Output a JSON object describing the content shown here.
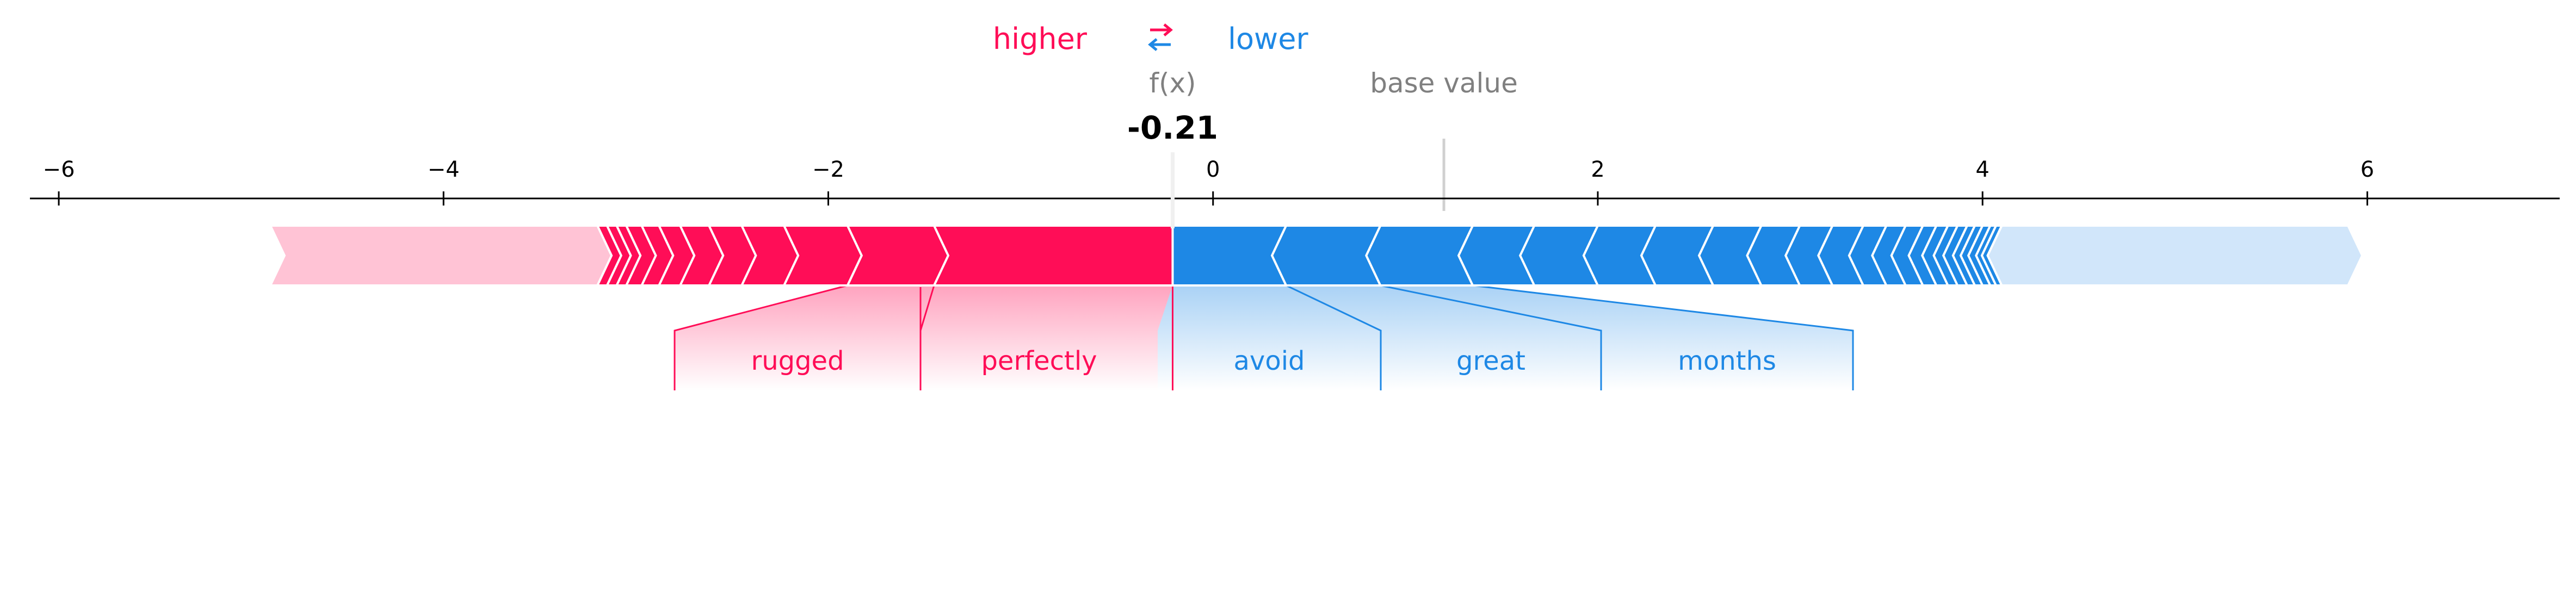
{
  "chart_data": {
    "type": "force",
    "legend": {
      "higher": "higher",
      "lower": "lower",
      "arrow_icon": "swap-arrows-icon"
    },
    "output_label": "f(x)",
    "output_value": -0.21,
    "output_value_text": "-0.21",
    "base_value_label": "base value",
    "base_value": 1.2,
    "xlim": [
      -6.15,
      7.0
    ],
    "ticks": [
      -6,
      -4,
      -2,
      0,
      2,
      4,
      6
    ],
    "tick_labels": [
      "−6",
      "−4",
      "−2",
      "0",
      "2",
      "4",
      "6"
    ],
    "positive_span": [
      -4.9,
      -0.21
    ],
    "negative_span": [
      -0.21,
      5.9
    ],
    "positive_boundaries": [
      -4.9,
      -3.2,
      -3.15,
      -3.1,
      -3.05,
      -2.97,
      -2.88,
      -2.77,
      -2.62,
      -2.45,
      -2.23,
      -1.9,
      -1.45,
      -0.21
    ],
    "negative_boundaries": [
      -0.21,
      0.38,
      0.87,
      1.35,
      1.67,
      2.0,
      2.3,
      2.6,
      2.85,
      3.05,
      3.22,
      3.38,
      3.5,
      3.6,
      3.69,
      3.76,
      3.82,
      3.87,
      3.92,
      3.96,
      4.0,
      4.04,
      4.07,
      4.1,
      5.9
    ],
    "labeled_features": [
      {
        "name": "rugged",
        "direction": "higher",
        "start": -1.9,
        "end": -1.45
      },
      {
        "name": "perfectly",
        "direction": "higher",
        "start": -1.45,
        "end": -0.21
      },
      {
        "name": "avoid",
        "direction": "lower",
        "start": -0.21,
        "end": 0.38
      },
      {
        "name": "great",
        "direction": "lower",
        "start": 0.38,
        "end": 0.87
      },
      {
        "name": "months",
        "direction": "lower",
        "start": 0.87,
        "end": 1.35
      }
    ],
    "colors": {
      "higher": "#ff0d57",
      "higher_light": "#ffc3d5",
      "lower": "#1e88e5",
      "lower_light": "#d1e6fa",
      "muted": "#808080"
    }
  }
}
